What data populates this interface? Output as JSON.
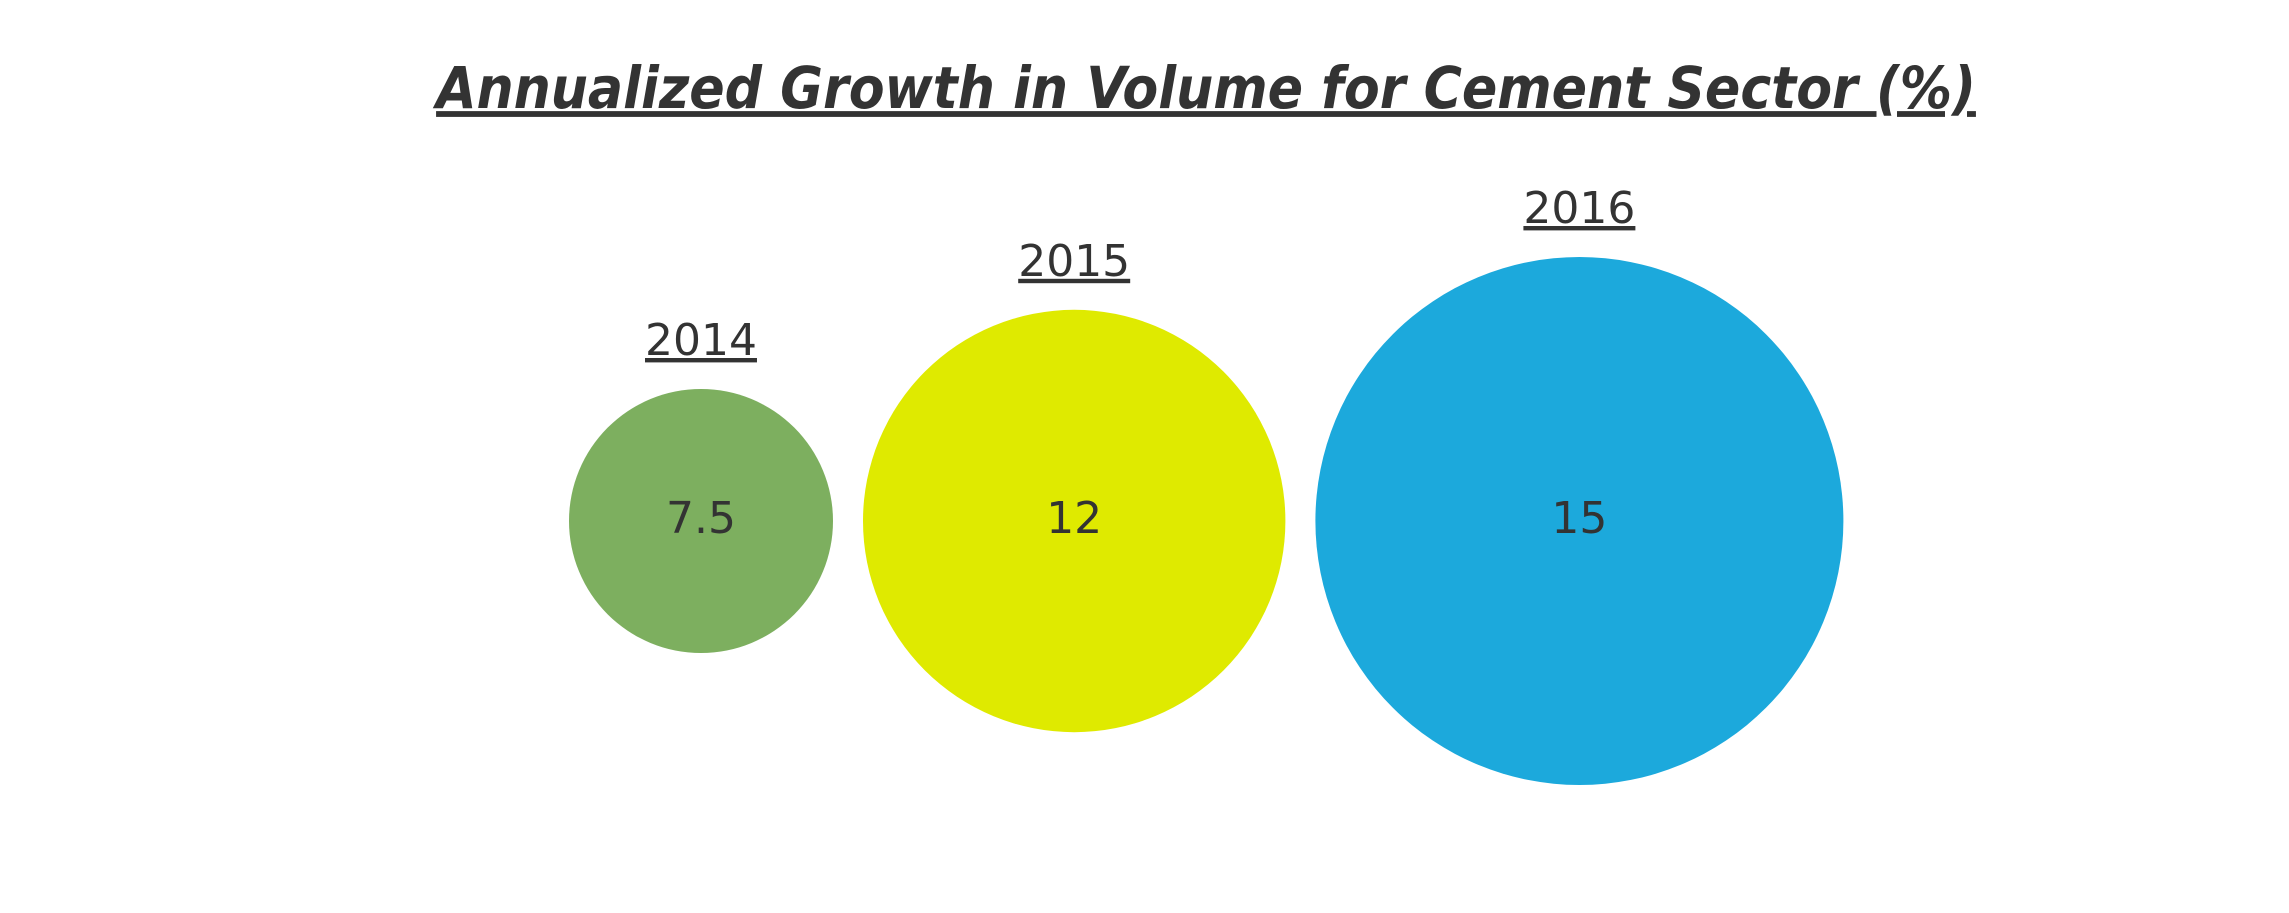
{
  "chart_data": {
    "type": "bubble",
    "title": "Annualized Growth in Volume for Cement Sector (%)",
    "categories": [
      "2014",
      "2015",
      "2016"
    ],
    "values": [
      7.5,
      12,
      15
    ],
    "colors": [
      "#7daf5f",
      "#dfea00",
      "#1ca9dc"
    ]
  }
}
